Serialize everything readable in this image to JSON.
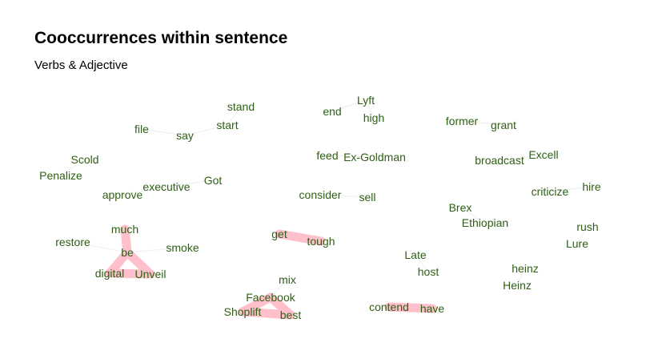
{
  "title": "Cooccurrences within sentence",
  "subtitle": "Verbs & Adjective",
  "style": {
    "word_color": "#2e5f16",
    "edge_color": "#ffc0cb",
    "faint_edge_color": "#eeeeee"
  },
  "words": [
    "stand",
    "start",
    "say",
    "file",
    "end",
    "Lyft",
    "high",
    "former",
    "grant",
    "Scold",
    "Penalize",
    "feed",
    "Ex-Goldman",
    "broadcast",
    "Excell",
    "executive",
    "Got",
    "approve",
    "consider",
    "sell",
    "criticize",
    "hire",
    "Brex",
    "Ethiopian",
    "much",
    "restore",
    "be",
    "smoke",
    "digital",
    "Unveil",
    "get",
    "tough",
    "rush",
    "Lure",
    "Late",
    "host",
    "heinz",
    "Heinz",
    "mix",
    "Facebook",
    "Shoplift",
    "best",
    "contend",
    "have"
  ],
  "edges": [
    {
      "from": "much",
      "to": "be",
      "strength": "strong"
    },
    {
      "from": "be",
      "to": "digital",
      "strength": "strong"
    },
    {
      "from": "be",
      "to": "Unveil",
      "strength": "strong"
    },
    {
      "from": "digital",
      "to": "Unveil",
      "strength": "strong"
    },
    {
      "from": "get",
      "to": "tough",
      "strength": "strong"
    },
    {
      "from": "Facebook",
      "to": "Shoplift",
      "strength": "strong"
    },
    {
      "from": "Facebook",
      "to": "best",
      "strength": "strong"
    },
    {
      "from": "Shoplift",
      "to": "best",
      "strength": "strong"
    },
    {
      "from": "contend",
      "to": "have",
      "strength": "strong"
    },
    {
      "from": "stand",
      "to": "start",
      "strength": "weak"
    },
    {
      "from": "start",
      "to": "say",
      "strength": "weak"
    },
    {
      "from": "say",
      "to": "file",
      "strength": "weak"
    },
    {
      "from": "end",
      "to": "Lyft",
      "strength": "weak"
    },
    {
      "from": "Lyft",
      "to": "high",
      "strength": "weak"
    },
    {
      "from": "former",
      "to": "grant",
      "strength": "weak"
    },
    {
      "from": "Scold",
      "to": "Penalize",
      "strength": "weak"
    },
    {
      "from": "feed",
      "to": "Ex-Goldman",
      "strength": "weak"
    },
    {
      "from": "broadcast",
      "to": "Excell",
      "strength": "weak"
    },
    {
      "from": "executive",
      "to": "Got",
      "strength": "weak"
    },
    {
      "from": "executive",
      "to": "approve",
      "strength": "weak"
    },
    {
      "from": "consider",
      "to": "sell",
      "strength": "weak"
    },
    {
      "from": "criticize",
      "to": "hire",
      "strength": "weak"
    },
    {
      "from": "Brex",
      "to": "Ethiopian",
      "strength": "weak"
    },
    {
      "from": "rush",
      "to": "Lure",
      "strength": "weak"
    },
    {
      "from": "Late",
      "to": "host",
      "strength": "weak"
    },
    {
      "from": "heinz",
      "to": "Heinz",
      "strength": "weak"
    },
    {
      "from": "mix",
      "to": "Facebook",
      "strength": "weak"
    },
    {
      "from": "restore",
      "to": "be",
      "strength": "weak"
    },
    {
      "from": "smoke",
      "to": "be",
      "strength": "weak"
    }
  ]
}
